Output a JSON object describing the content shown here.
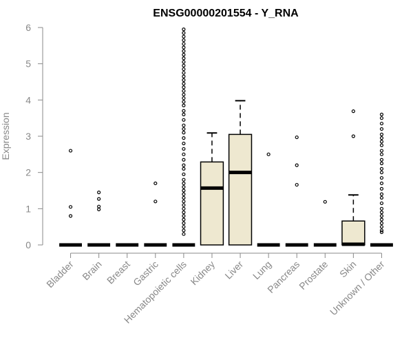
{
  "chart_data": {
    "type": "boxplot",
    "title": "ENSG00000201554 - Y_RNA",
    "ylabel": "Expression",
    "xlabel": "",
    "ylim": [
      0,
      6
    ],
    "yticks": [
      0,
      1,
      2,
      3,
      4,
      5,
      6
    ],
    "grid": false,
    "legend": "none",
    "colors": {
      "box_fill": "#EEE8D0",
      "box_stroke": "#000000",
      "median": "#000000",
      "axis": "#888888",
      "title": "#000000"
    },
    "categories": [
      "Bladder",
      "Brain",
      "Breast",
      "Gastric",
      "Hematopoietic cells",
      "Kidney",
      "Liver",
      "Lung",
      "Pancreas",
      "Prostate",
      "Skin",
      "Unknown / Other"
    ],
    "boxes": [
      {
        "category": "Bladder",
        "q1": 0,
        "median": 0,
        "q3": 0,
        "whisker_low": 0,
        "whisker_high": 0,
        "outliers": [
          2.6,
          1.05,
          0.8
        ]
      },
      {
        "category": "Brain",
        "q1": 0,
        "median": 0,
        "q3": 0,
        "whisker_low": 0,
        "whisker_high": 0,
        "outliers": [
          1.45,
          1.27,
          1.06,
          0.98
        ]
      },
      {
        "category": "Breast",
        "q1": 0,
        "median": 0,
        "q3": 0,
        "whisker_low": 0,
        "whisker_high": 0,
        "outliers": []
      },
      {
        "category": "Gastric",
        "q1": 0,
        "median": 0,
        "q3": 0,
        "whisker_low": 0,
        "whisker_high": 0,
        "outliers": [
          1.7,
          1.2
        ]
      },
      {
        "category": "Hematopoietic cells",
        "q1": 0,
        "median": 0,
        "q3": 0,
        "whisker_low": 0,
        "whisker_high": 0,
        "outliers": [
          5.95,
          5.85,
          5.75,
          5.65,
          5.55,
          5.45,
          5.35,
          5.25,
          5.15,
          5.05,
          4.95,
          4.85,
          4.75,
          4.65,
          4.55,
          4.45,
          4.35,
          4.25,
          4.15,
          4.05,
          3.95,
          3.85,
          3.7,
          3.6,
          3.45,
          3.3,
          3.2,
          3.1,
          2.95,
          2.8,
          2.65,
          2.5,
          2.35,
          2.2,
          2.1,
          1.95,
          1.8,
          1.7,
          1.6,
          1.5,
          1.4,
          1.3,
          1.2,
          1.1,
          1.0,
          0.9,
          0.8,
          0.7,
          0.6,
          0.5,
          0.4,
          0.3
        ]
      },
      {
        "category": "Kidney",
        "q1": 0,
        "median": 1.57,
        "q3": 2.29,
        "whisker_low": 0,
        "whisker_high": 3.09,
        "outliers": []
      },
      {
        "category": "Liver",
        "q1": 0,
        "median": 2.0,
        "q3": 3.05,
        "whisker_low": 0,
        "whisker_high": 3.98,
        "outliers": []
      },
      {
        "category": "Lung",
        "q1": 0,
        "median": 0,
        "q3": 0,
        "whisker_low": 0,
        "whisker_high": 0,
        "outliers": [
          2.5
        ]
      },
      {
        "category": "Pancreas",
        "q1": 0,
        "median": 0,
        "q3": 0,
        "whisker_low": 0,
        "whisker_high": 0,
        "outliers": [
          2.97,
          2.2,
          1.66
        ]
      },
      {
        "category": "Prostate",
        "q1": 0,
        "median": 0,
        "q3": 0,
        "whisker_low": 0,
        "whisker_high": 0,
        "outliers": [
          1.19
        ]
      },
      {
        "category": "Skin",
        "q1": 0,
        "median": 0.02,
        "q3": 0.66,
        "whisker_low": 0,
        "whisker_high": 1.38,
        "outliers": [
          3.69,
          3.0
        ]
      },
      {
        "category": "Unknown / Other",
        "q1": 0,
        "median": 0,
        "q3": 0,
        "whisker_low": 0,
        "whisker_high": 0,
        "outliers": [
          3.6,
          3.5,
          3.35,
          3.2,
          3.05,
          2.95,
          2.85,
          2.75,
          2.6,
          2.5,
          2.35,
          2.25,
          2.1,
          2.0,
          1.85,
          1.7,
          1.55,
          1.4,
          1.3,
          1.15,
          1.0,
          0.9,
          0.8,
          0.7,
          0.6,
          0.5,
          0.4,
          0.35
        ]
      }
    ]
  }
}
